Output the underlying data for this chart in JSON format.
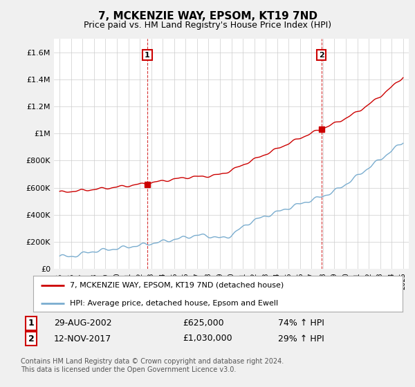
{
  "title": "7, MCKENZIE WAY, EPSOM, KT19 7ND",
  "subtitle": "Price paid vs. HM Land Registry's House Price Index (HPI)",
  "legend_line1": "7, MCKENZIE WAY, EPSOM, KT19 7ND (detached house)",
  "legend_line2": "HPI: Average price, detached house, Epsom and Ewell",
  "annotation1_label": "1",
  "annotation1_date": "29-AUG-2002",
  "annotation1_price": "£625,000",
  "annotation1_hpi": "74% ↑ HPI",
  "annotation2_label": "2",
  "annotation2_date": "12-NOV-2017",
  "annotation2_price": "£1,030,000",
  "annotation2_hpi": "29% ↑ HPI",
  "footer": "Contains HM Land Registry data © Crown copyright and database right 2024.\nThis data is licensed under the Open Government Licence v3.0.",
  "red_color": "#cc0000",
  "blue_color": "#7aadcf",
  "annotation_box_color": "#cc0000",
  "background_color": "#f0f0f0",
  "plot_bg_color": "#ffffff",
  "grid_color": "#cccccc",
  "ylim": [
    0,
    1700000
  ],
  "yticks": [
    0,
    200000,
    400000,
    600000,
    800000,
    1000000,
    1200000,
    1400000,
    1600000
  ],
  "sale1_year": 2002.65,
  "sale1_price": 625000,
  "sale2_year": 2017.87,
  "sale2_price": 1030000
}
